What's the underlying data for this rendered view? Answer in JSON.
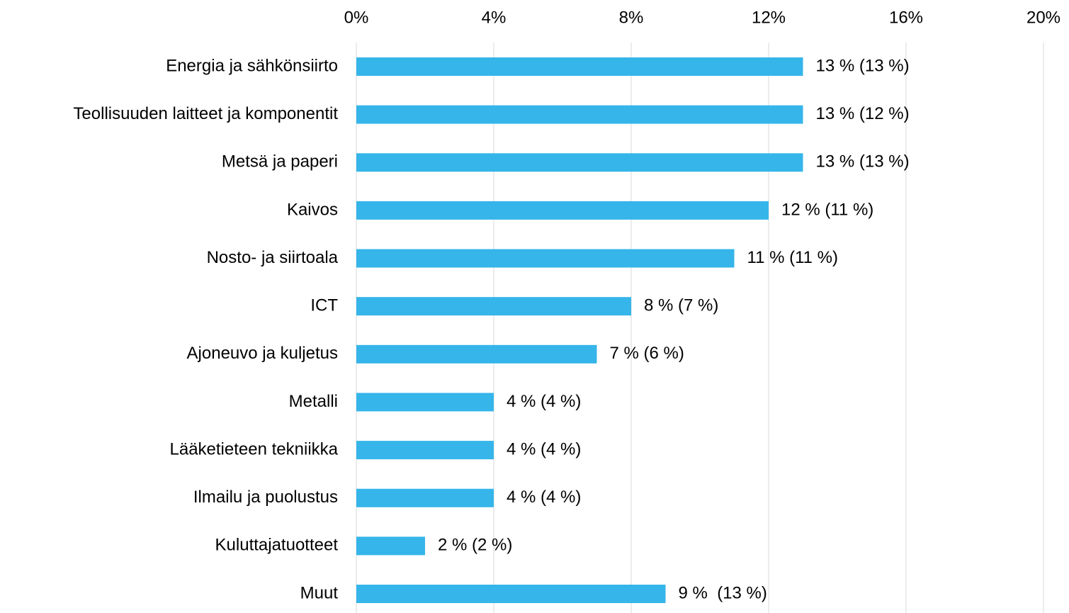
{
  "chart_data": {
    "type": "hbar",
    "categories": [
      "Energia ja sähkönsiirto",
      "Teollisuuden laitteet ja komponentit",
      "Metsä ja paperi",
      "Kaivos",
      "Nosto- ja siirtoala",
      "ICT",
      "Ajoneuvo ja kuljetus",
      "Metalli",
      "Lääketieteen tekniikka",
      "Ilmailu ja puolustus",
      "Kuluttajatuotteet",
      "Muut"
    ],
    "values": [
      13,
      13,
      13,
      12,
      11,
      8,
      7,
      4,
      4,
      4,
      2,
      9
    ],
    "value_labels": [
      "13 % (13 %)",
      "13 % (12 %)",
      "13 % (13 %)",
      "12 % (11 %)",
      "11 % (11 %)",
      "8 % (7 %)",
      "7 % (6 %)",
      "4 % (4 %)",
      "4 % (4 %)",
      "4 % (4 %)",
      "2 % (2 %)",
      "9 %  (13 %)"
    ],
    "color": "#35b5e9",
    "xlim": [
      0,
      20
    ],
    "xticks": [
      {
        "value": 0,
        "label": "0%"
      },
      {
        "value": 4,
        "label": "4%"
      },
      {
        "value": 8,
        "label": "8%"
      },
      {
        "value": 12,
        "label": "12%"
      },
      {
        "value": 16,
        "label": "16%"
      },
      {
        "value": 20,
        "label": "20%"
      }
    ],
    "grid": true
  }
}
